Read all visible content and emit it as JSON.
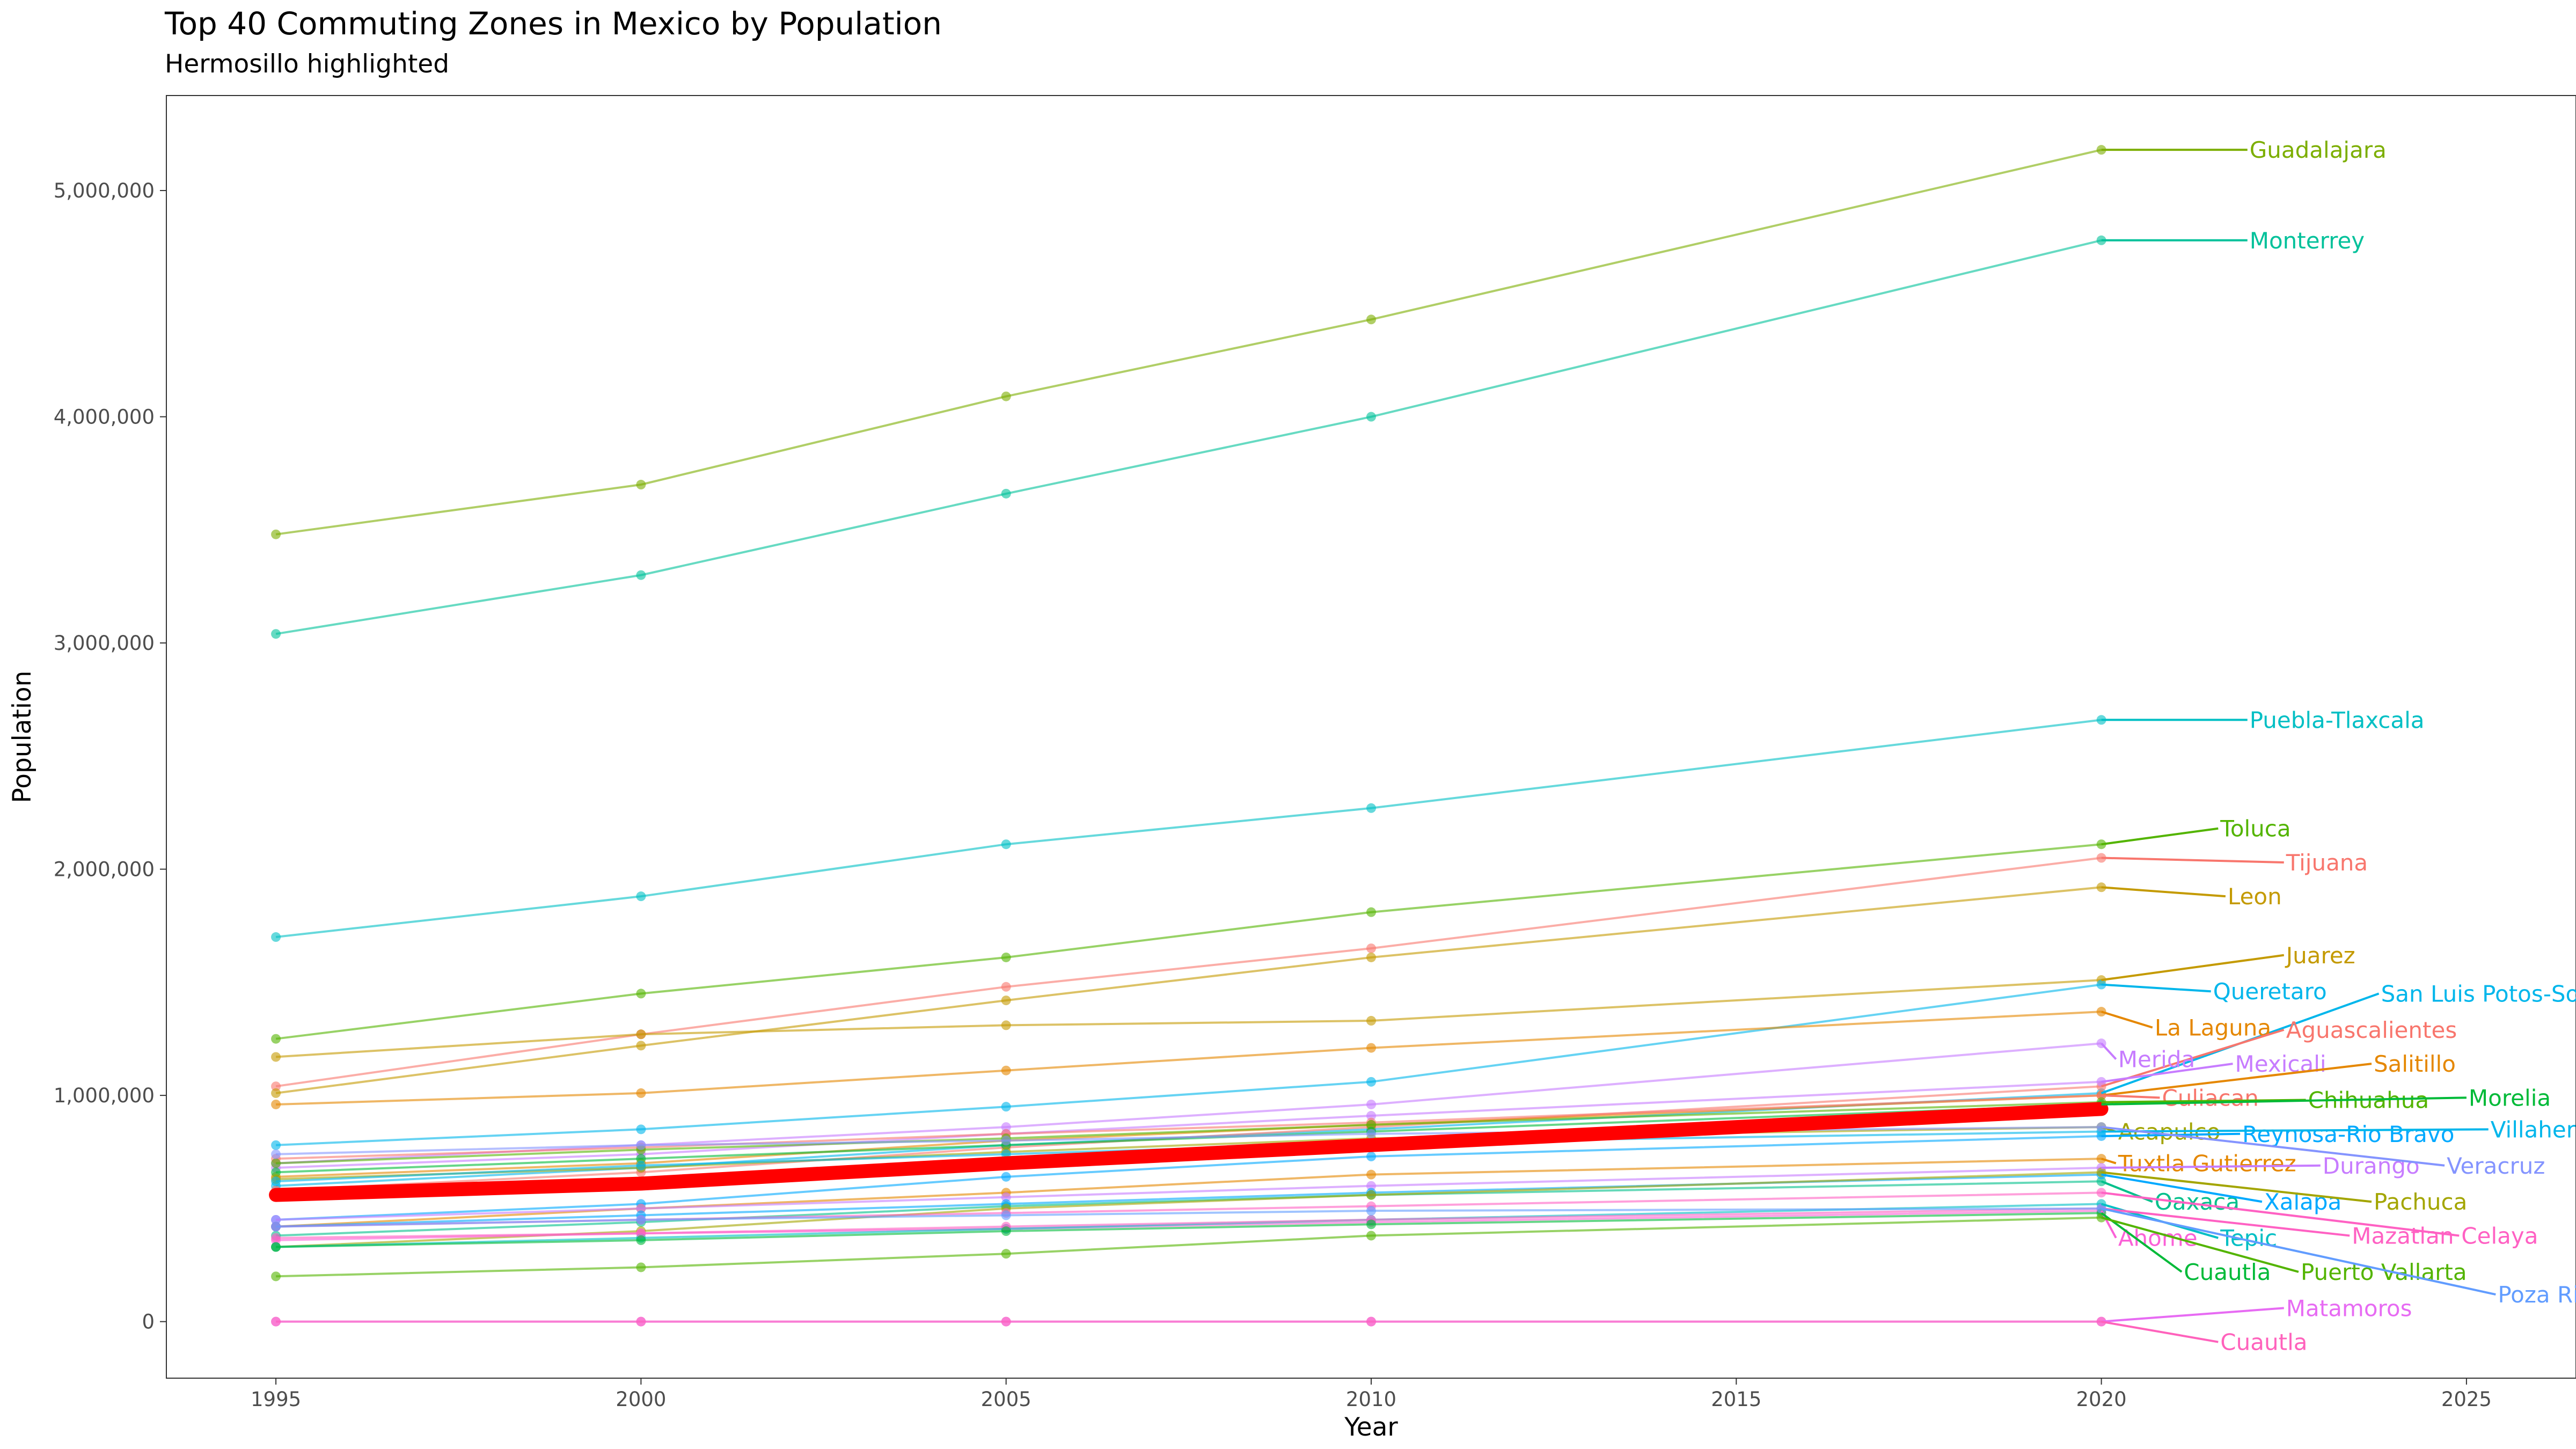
{
  "chart_data": {
    "type": "line",
    "title": "Top 40 Commuting Zones in Mexico by Population",
    "subtitle": "Hermosillo highlighted",
    "xlabel": "Year",
    "ylabel": "Population",
    "x": [
      1995,
      2000,
      2005,
      2010,
      2020
    ],
    "xlim": [
      1993.5,
      2026.5
    ],
    "ylim": [
      -250000,
      5420000
    ],
    "x_ticks": [
      1995,
      2000,
      2005,
      2010,
      2015,
      2020,
      2025
    ],
    "y_ticks": [
      0,
      1000000,
      2000000,
      3000000,
      4000000,
      5000000
    ],
    "y_tick_labels": [
      "0",
      "1,000,000",
      "2,000,000",
      "3,000,000",
      "4,000,000",
      "5,000,000"
    ],
    "grid": false,
    "legend": "none",
    "highlight": {
      "values": [
        560000,
        610000,
        700000,
        780000,
        940000
      ],
      "color": "#ff0000"
    },
    "series": [
      {
        "name": "Guadalajara",
        "color": "#7cae00",
        "label_x": 2022.0,
        "label_y": 5180000,
        "values": [
          3480000,
          3700000,
          4090000,
          4430000,
          5180000
        ]
      },
      {
        "name": "Monterrey",
        "color": "#00c19a",
        "label_x": 2022.0,
        "label_y": 4780000,
        "values": [
          3040000,
          3300000,
          3660000,
          4000000,
          4780000
        ]
      },
      {
        "name": "Puebla-Tlaxcala",
        "color": "#00bfc4",
        "label_x": 2022.0,
        "label_y": 2660000,
        "values": [
          1700000,
          1880000,
          2110000,
          2270000,
          2660000
        ]
      },
      {
        "name": "Toluca",
        "color": "#53b400",
        "label_x": 2021.6,
        "label_y": 2180000,
        "values": [
          1250000,
          1450000,
          1610000,
          1810000,
          2110000
        ]
      },
      {
        "name": "Tijuana",
        "color": "#f8766d",
        "label_x": 2022.5,
        "label_y": 2030000,
        "values": [
          1040000,
          1270000,
          1480000,
          1650000,
          2050000
        ]
      },
      {
        "name": "Leon",
        "color": "#c49a00",
        "label_x": 2021.7,
        "label_y": 1880000,
        "values": [
          1010000,
          1220000,
          1420000,
          1610000,
          1920000
        ]
      },
      {
        "name": "Juarez",
        "color": "#c49a00",
        "label_x": 2022.5,
        "label_y": 1620000,
        "values": [
          1170000,
          1270000,
          1310000,
          1330000,
          1510000
        ]
      },
      {
        "name": "Queretaro",
        "color": "#00b6eb",
        "label_x": 2021.5,
        "label_y": 1460000,
        "values": [
          780000,
          850000,
          950000,
          1060000,
          1490000
        ]
      },
      {
        "name": "San Luis Potos-Soledad",
        "color": "#00b6eb",
        "label_x": 2023.8,
        "label_y": 1450000,
        "values": [
          600000,
          680000,
          780000,
          850000,
          1010000
        ]
      },
      {
        "name": "La Laguna",
        "color": "#e58700",
        "label_x": 2020.7,
        "label_y": 1300000,
        "values": [
          960000,
          1010000,
          1110000,
          1210000,
          1370000
        ]
      },
      {
        "name": "Aguascalientes",
        "color": "#f8766d",
        "label_x": 2022.5,
        "label_y": 1290000,
        "values": [
          580000,
          660000,
          770000,
          860000,
          1040000
        ]
      },
      {
        "name": "Merida",
        "color": "#c77cff",
        "label_x": 2020.2,
        "label_y": 1160000,
        "values": [
          700000,
          780000,
          860000,
          960000,
          1230000
        ]
      },
      {
        "name": "Mexicali",
        "color": "#c77cff",
        "label_x": 2021.8,
        "label_y": 1140000,
        "values": [
          680000,
          740000,
          830000,
          910000,
          1060000
        ]
      },
      {
        "name": "Salitillo",
        "color": "#e58700",
        "label_x": 2023.7,
        "label_y": 1140000,
        "values": [
          640000,
          700000,
          800000,
          870000,
          1000000
        ]
      },
      {
        "name": "Culiacan",
        "color": "#f8766d",
        "label_x": 2020.8,
        "label_y": 990000,
        "values": [
          720000,
          770000,
          830000,
          880000,
          1000000
        ]
      },
      {
        "name": "Chihuahua",
        "color": "#53b400",
        "label_x": 2022.8,
        "label_y": 980000,
        "values": [
          700000,
          760000,
          810000,
          870000,
          970000
        ]
      },
      {
        "name": "Morelia",
        "color": "#00ba38",
        "label_x": 2025.0,
        "label_y": 990000,
        "values": [
          660000,
          720000,
          780000,
          840000,
          960000
        ]
      },
      {
        "name": "Acapulco",
        "color": "#a3a500",
        "label_x": 2020.2,
        "label_y": 840000,
        "values": [
          630000,
          680000,
          750000,
          810000,
          860000
        ]
      },
      {
        "name": "Reynosa-Rio Bravo",
        "color": "#00a9ff",
        "label_x": 2021.9,
        "label_y": 830000,
        "values": [
          450000,
          520000,
          640000,
          730000,
          820000
        ]
      },
      {
        "name": "Villahermosa",
        "color": "#00b6eb",
        "label_x": 2025.3,
        "label_y": 850000,
        "values": [
          620000,
          690000,
          740000,
          790000,
          840000
        ]
      },
      {
        "name": "Tuxtla Gutierrez",
        "color": "#e58700",
        "label_x": 2020.2,
        "label_y": 700000,
        "values": [
          420000,
          500000,
          570000,
          650000,
          720000
        ]
      },
      {
        "name": "Durango",
        "color": "#c77cff",
        "label_x": 2023.0,
        "label_y": 690000,
        "values": [
          450000,
          500000,
          550000,
          600000,
          680000
        ]
      },
      {
        "name": "Veracruz",
        "color": "#8494ff",
        "label_x": 2024.7,
        "label_y": 690000,
        "values": [
          740000,
          780000,
          800000,
          830000,
          860000
        ]
      },
      {
        "name": "Oaxaca",
        "color": "#00c08b",
        "label_x": 2020.7,
        "label_y": 530000,
        "values": [
          380000,
          440000,
          510000,
          560000,
          620000
        ]
      },
      {
        "name": "Xalapa",
        "color": "#00a9ff",
        "label_x": 2022.2,
        "label_y": 530000,
        "values": [
          420000,
          470000,
          520000,
          570000,
          650000
        ]
      },
      {
        "name": "Pachuca",
        "color": "#a3a500",
        "label_x": 2023.7,
        "label_y": 530000,
        "values": [
          330000,
          400000,
          500000,
          560000,
          660000
        ]
      },
      {
        "name": "Ahome",
        "color": "#fb61d7",
        "label_x": 2020.2,
        "label_y": 370000,
        "values": [
          360000,
          390000,
          410000,
          440000,
          490000
        ]
      },
      {
        "name": "Tepic",
        "color": "#00bfc4",
        "label_x": 2021.6,
        "label_y": 370000,
        "values": [
          330000,
          370000,
          410000,
          450000,
          520000
        ]
      },
      {
        "name": "Mazatlan",
        "color": "#ff61c3",
        "label_x": 2023.4,
        "label_y": 380000,
        "values": [
          370000,
          390000,
          420000,
          450000,
          500000
        ]
      },
      {
        "name": "Celaya",
        "color": "#ff61c3",
        "label_x": 2024.9,
        "label_y": 380000,
        "values": [
          420000,
          450000,
          480000,
          510000,
          570000
        ]
      },
      {
        "name": "Cuautla",
        "color": "#00ba38",
        "label_x": 2021.1,
        "label_y": 220000,
        "values": [
          330000,
          360000,
          400000,
          430000,
          480000
        ]
      },
      {
        "name": "Puerto Vallarta",
        "color": "#53b400",
        "label_x": 2022.7,
        "label_y": 220000,
        "values": [
          200000,
          240000,
          300000,
          380000,
          460000
        ]
      },
      {
        "name": "Poza Rica",
        "color": "#619cff",
        "label_x": 2025.4,
        "label_y": 120000,
        "values": [
          420000,
          450000,
          470000,
          490000,
          500000
        ]
      },
      {
        "name": "Matamoros",
        "color": "#e76bf3",
        "label_x": 2022.5,
        "label_y": 60000,
        "values": [
          0,
          0,
          0,
          0,
          0
        ]
      },
      {
        "name": "Cuautla",
        "color": "#ff62bc",
        "label_x": 2021.6,
        "label_y": -90000,
        "values": [
          0,
          0,
          0,
          0,
          0
        ]
      }
    ]
  }
}
